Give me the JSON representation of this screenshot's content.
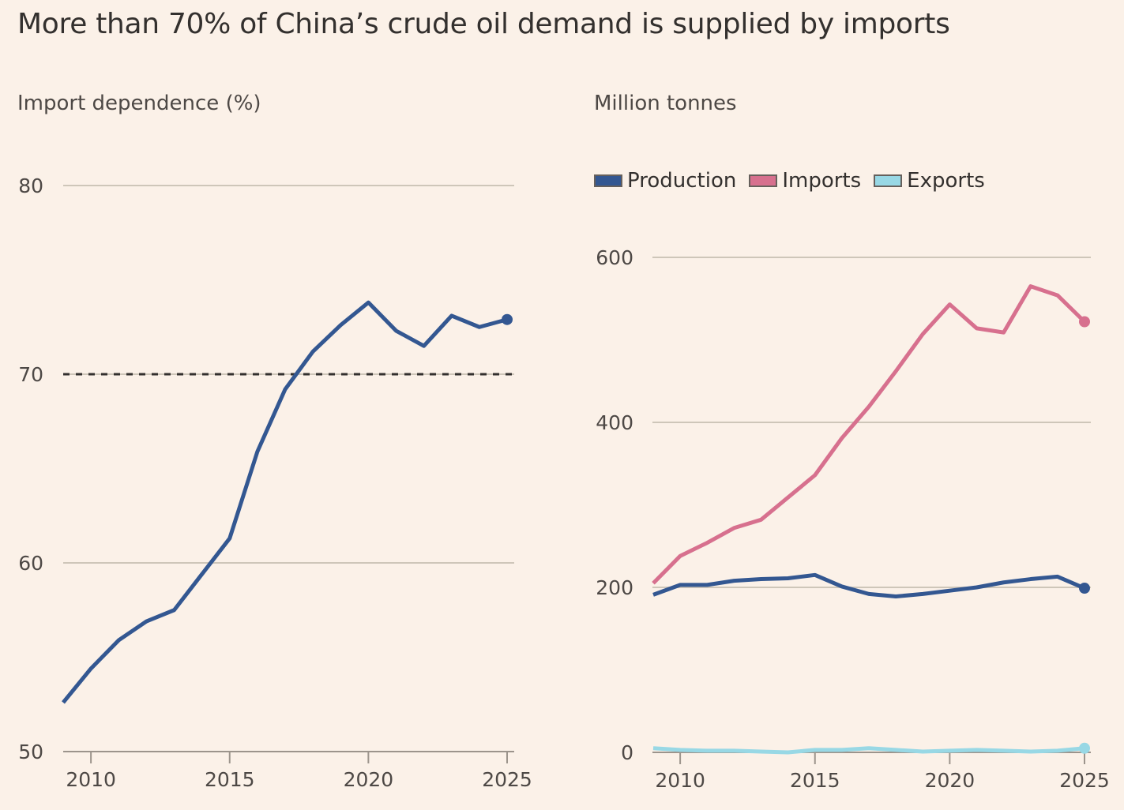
{
  "title": "More than 70% of China’s crude oil demand is supplied by imports",
  "colors": {
    "background": "#FBF1E8",
    "production": "#335791",
    "imports": "#D7708E",
    "exports": "#98D8E5",
    "gridline": "#CEC6B9",
    "axis": "#9C948C",
    "threshold": "#33302E"
  },
  "chart_data": [
    {
      "type": "line",
      "title": "Import dependence (%)",
      "xlabel": "",
      "ylabel": "Import dependence (%)",
      "x": [
        2009,
        2010,
        2011,
        2012,
        2013,
        2014,
        2015,
        2016,
        2017,
        2018,
        2019,
        2020,
        2021,
        2022,
        2023,
        2024,
        2025
      ],
      "series": [
        {
          "name": "Import dependence",
          "values": [
            52.6,
            54.4,
            55.9,
            56.9,
            57.5,
            59.4,
            61.3,
            65.9,
            69.2,
            71.2,
            72.6,
            73.8,
            72.3,
            71.5,
            73.1,
            72.5,
            72.9
          ]
        }
      ],
      "reference_line": {
        "value": 70,
        "style": "dashed"
      },
      "ylim": [
        50,
        80
      ],
      "yticks": [
        "50",
        "60",
        "70",
        "80"
      ],
      "xlim": [
        2009,
        2025
      ],
      "xticks": [
        "2010",
        "2015",
        "2020",
        "2025"
      ],
      "grid": true,
      "endpoint_marker": true
    },
    {
      "type": "line",
      "title": "Million tonnes",
      "xlabel": "",
      "ylabel": "Million tonnes",
      "x": [
        2009,
        2010,
        2011,
        2012,
        2013,
        2014,
        2015,
        2016,
        2017,
        2018,
        2019,
        2020,
        2021,
        2022,
        2023,
        2024,
        2025
      ],
      "series": [
        {
          "name": "Production",
          "values": [
            191,
            203,
            203,
            208,
            210,
            211,
            215,
            201,
            192,
            189,
            192,
            196,
            200,
            206,
            210,
            213,
            199
          ]
        },
        {
          "name": "Imports",
          "values": [
            205,
            238,
            254,
            272,
            282,
            309,
            336,
            381,
            419,
            462,
            507,
            543,
            514,
            509,
            565,
            554,
            522
          ]
        },
        {
          "name": "Exports",
          "values": [
            5,
            3,
            2,
            2,
            1,
            0,
            3,
            3,
            5,
            3,
            1,
            2,
            3,
            2,
            1,
            2,
            5
          ]
        }
      ],
      "legend": [
        "Production",
        "Imports",
        "Exports"
      ],
      "legend_position": "top-left",
      "ylim": [
        0,
        600
      ],
      "yticks": [
        "0",
        "200",
        "400",
        "600"
      ],
      "xlim": [
        2009,
        2025
      ],
      "xticks": [
        "2010",
        "2015",
        "2020",
        "2025"
      ],
      "grid": true,
      "endpoint_marker": true
    }
  ]
}
